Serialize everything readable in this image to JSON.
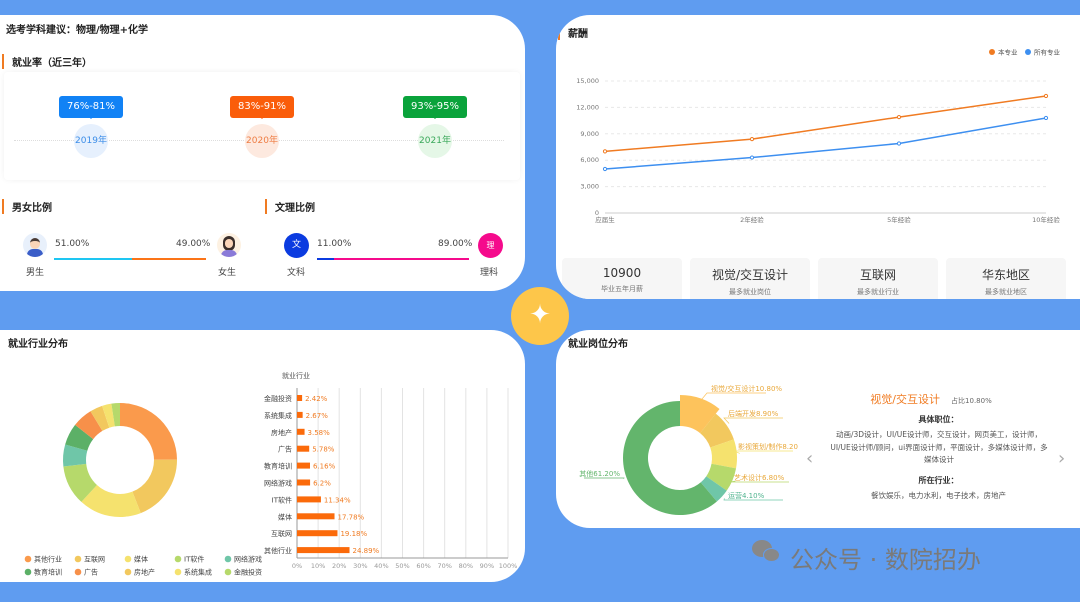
{
  "subject_advice": "选考学科建议：物理/物理+化学",
  "employment": {
    "title": "就业率（近三年）",
    "items": [
      {
        "range": "76%-81%",
        "year": "2019年",
        "color": "#1182f5",
        "bg": "#e6f0fd",
        "text": "#3b8de8"
      },
      {
        "range": "83%-91%",
        "year": "2020年",
        "color": "#fa5d0a",
        "bg": "#fde9df",
        "text": "#ee7d44"
      },
      {
        "range": "93%-95%",
        "year": "2021年",
        "color": "#0aa33b",
        "bg": "#e5f7e7",
        "text": "#3aa85a"
      }
    ]
  },
  "gender": {
    "title": "男女比例",
    "male_pct": "51.00%",
    "female_pct": "49.00%",
    "male_label": "男生",
    "female_label": "女生",
    "male_value": 51,
    "male_color": "#1ec6f2",
    "female_color": "#fb7418"
  },
  "arts_science": {
    "title": "文理比例",
    "arts_pct": "11.00%",
    "science_pct": "89.00%",
    "arts_label": "文科",
    "science_label": "理科",
    "arts_icon": "文",
    "science_icon": "理",
    "arts_value": 11,
    "arts_color": "#0b3be0",
    "science_color": "#f50a8c"
  },
  "salary": {
    "title": "薪酬",
    "legend": [
      {
        "name": "本专业",
        "color": "#f07b22"
      },
      {
        "name": "所有专业",
        "color": "#3d8ff0"
      }
    ],
    "stats": [
      {
        "value": "10900",
        "label": "毕业五年月薪"
      },
      {
        "value": "视觉/交互设计",
        "label": "最多就业岗位"
      },
      {
        "value": "互联网",
        "label": "最多就业行业"
      },
      {
        "value": "华东地区",
        "label": "最多就业地区"
      }
    ]
  },
  "industry": {
    "title": "就业行业分布",
    "bar_title": "就业行业"
  },
  "positions": {
    "title": "就业岗位分布",
    "selected": "视觉/交互设计",
    "selected_share": "占比10.80%",
    "jobs_title": "具体职位：",
    "jobs": "动画/3D设计，UI/UE设计师，交互设计，网页美工，设计师，UI/UE设计师/顾问，ui界面设计师，平面设计，多媒体设计师，多媒体设计",
    "industries_title": "所在行业：",
    "industries": "餐饮娱乐，电力水利，电子技术，房地产",
    "prev": "‹",
    "next": "›"
  },
  "watermark": "公众号 · 数院招办",
  "chart_data": [
    {
      "type": "line",
      "title": "薪酬",
      "categories": [
        "应届生",
        "2年经验",
        "5年经验",
        "10年经验"
      ],
      "ylim": [
        0,
        15000
      ],
      "yticks": [
        "0",
        "3,000",
        "6,000",
        "9,000",
        "12,000",
        "15,000"
      ],
      "series": [
        {
          "name": "本专业",
          "values": [
            7000,
            8400,
            10900,
            13300
          ],
          "color": "#f07b22"
        },
        {
          "name": "所有专业",
          "values": [
            5000,
            6300,
            7900,
            10800
          ],
          "color": "#3d8ff0"
        }
      ],
      "legend": "top-right",
      "grid": true
    },
    {
      "type": "pie",
      "title": "就业行业分布",
      "labels": [
        "其他行业",
        "互联网",
        "媒体",
        "IT软件",
        "网络游戏",
        "教育培训",
        "广告",
        "房地产",
        "系统集成",
        "金融投资"
      ],
      "values": [
        24.89,
        19.18,
        17.78,
        11.34,
        6.2,
        6.16,
        5.78,
        3.58,
        2.67,
        2.42
      ],
      "colors": [
        "#fa9a4c",
        "#f2c85e",
        "#f5e26e",
        "#b6d96b",
        "#6fc6a8",
        "#5cb067",
        "#f7904a",
        "#f2c85e",
        "#f5e26e",
        "#b6d96b"
      ],
      "legend": "bottom"
    },
    {
      "type": "bar",
      "title": "就业行业",
      "categories": [
        "金融投资",
        "系统集成",
        "房地产",
        "广告",
        "教育培训",
        "网络游戏",
        "IT软件",
        "媒体",
        "互联网",
        "其他行业"
      ],
      "values": [
        2.42,
        2.67,
        3.58,
        5.78,
        6.16,
        6.2,
        11.34,
        17.78,
        19.18,
        24.89
      ],
      "value_labels": [
        "2.42%",
        "2.67%",
        "3.58%",
        "5.78%",
        "6.16%",
        "6.2%",
        "11.34%",
        "17.78%",
        "19.18%",
        "24.89%"
      ],
      "xticks": [
        "0%",
        "10%",
        "20%",
        "30%",
        "40%",
        "50%",
        "60%",
        "70%",
        "80%",
        "90%",
        "100%"
      ],
      "xlim": [
        0,
        100
      ],
      "color": "#fb6a0a"
    },
    {
      "type": "pie",
      "title": "就业岗位分布",
      "labels": [
        "视觉/交互设计10.80%",
        "后端开发8.90%",
        "影视策划/制作8.20",
        "艺术设计6.80%",
        "运营4.10%",
        "其他61.20%"
      ],
      "values": [
        10.8,
        8.9,
        8.2,
        6.8,
        4.1,
        61.2
      ],
      "colors": [
        "#fdc35c",
        "#f2c85e",
        "#f5e26e",
        "#b6d96b",
        "#6fc6a8",
        "#63b56c"
      ]
    }
  ]
}
